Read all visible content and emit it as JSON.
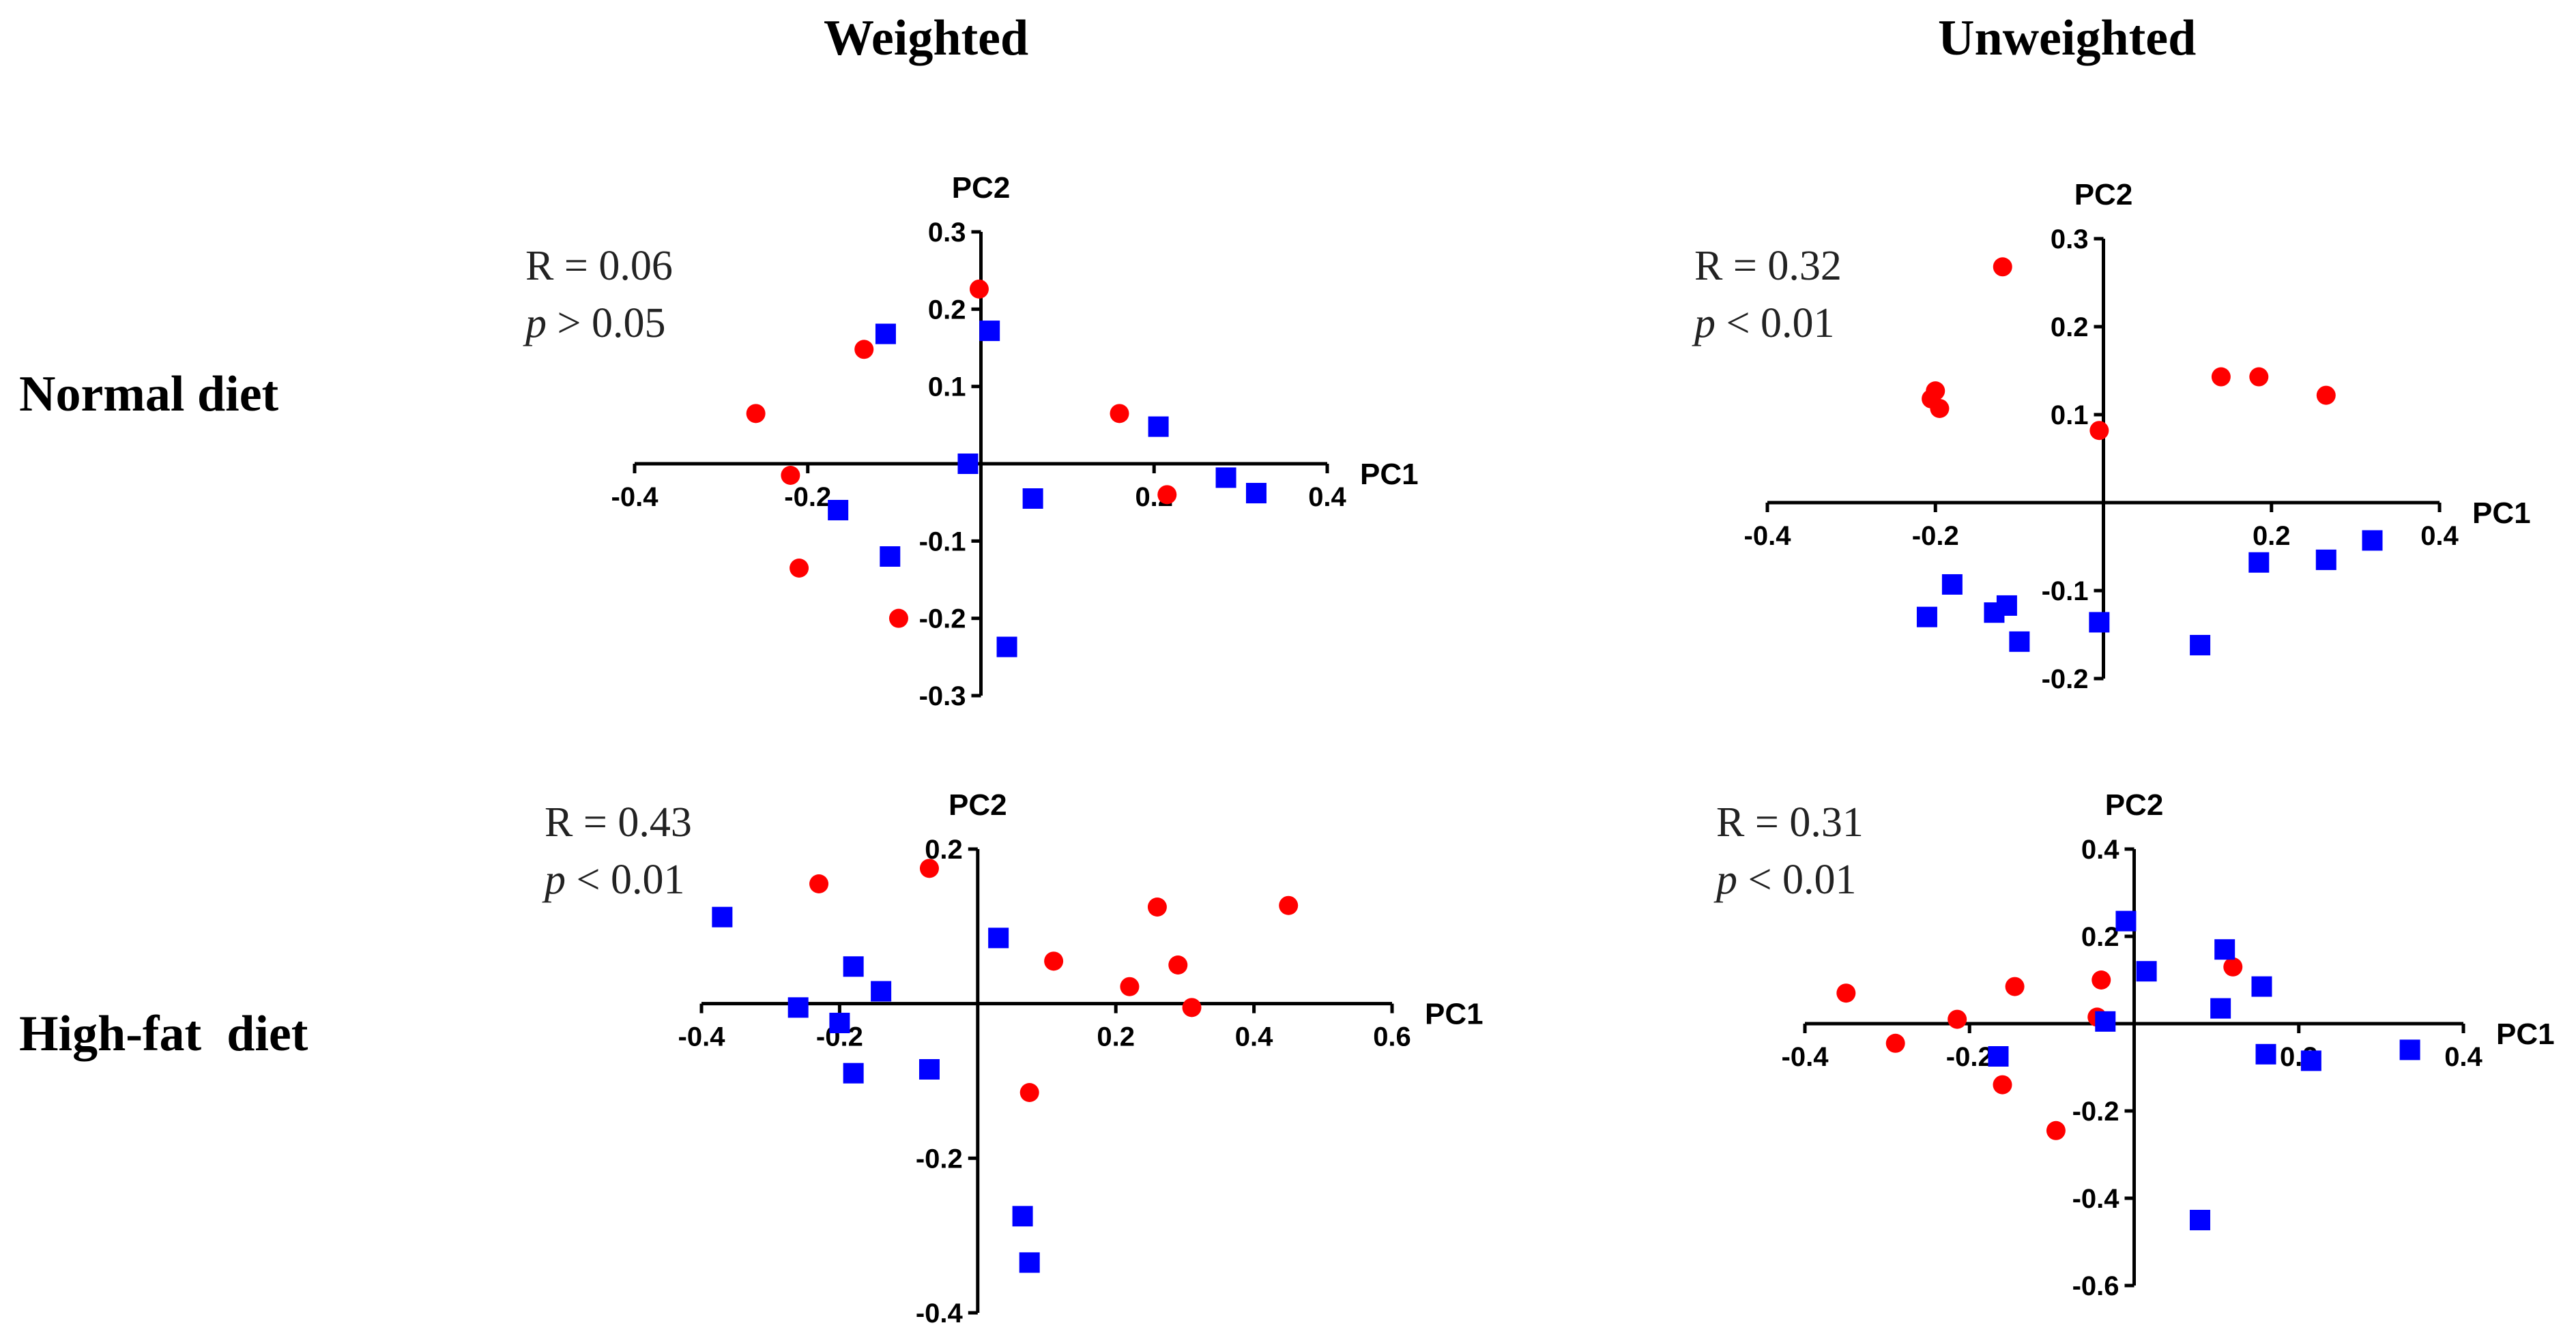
{
  "column_titles": [
    "Weighted",
    "Unweighted"
  ],
  "row_titles": [
    "Normal diet",
    "High-fat  diet"
  ],
  "colors": {
    "groupA": "#ff0000",
    "groupB": "#0000ff"
  },
  "chart_data": [
    {
      "id": "weighted-normal",
      "type": "scatter",
      "title": "Weighted",
      "row": "Normal diet",
      "xlabel": "PC1",
      "ylabel": "PC2",
      "xlim": [
        -0.4,
        0.4
      ],
      "ylim": [
        -0.3,
        0.3
      ],
      "xticks": [
        "-0.4",
        "-0.2",
        "0.2",
        "0.4"
      ],
      "yticks": [
        "0.3",
        "0.2",
        "0.1",
        "-0.1",
        "-0.2",
        "-0.3"
      ],
      "stats": {
        "r": "R = 0.06",
        "p_symbol": "p",
        "p_rest": " > 0.05"
      },
      "series": [
        {
          "name": "red",
          "marker": "circle",
          "color": "#ff0000",
          "points": [
            [
              -0.26,
              0.065
            ],
            [
              -0.22,
              -0.015
            ],
            [
              -0.21,
              -0.135
            ],
            [
              -0.135,
              0.148
            ],
            [
              -0.095,
              -0.2
            ],
            [
              -0.002,
              0.226
            ],
            [
              0.16,
              0.065
            ],
            [
              0.215,
              -0.04
            ]
          ]
        },
        {
          "name": "blue",
          "marker": "square",
          "color": "#0000ff",
          "points": [
            [
              -0.165,
              -0.06
            ],
            [
              -0.11,
              0.168
            ],
            [
              -0.105,
              -0.12
            ],
            [
              -0.015,
              0.0
            ],
            [
              0.01,
              0.172
            ],
            [
              0.03,
              -0.237
            ],
            [
              0.06,
              -0.045
            ],
            [
              0.205,
              0.048
            ],
            [
              0.283,
              -0.018
            ],
            [
              0.318,
              -0.038
            ]
          ]
        }
      ]
    },
    {
      "id": "unweighted-normal",
      "type": "scatter",
      "title": "Unweighted",
      "row": "Normal diet",
      "xlabel": "PC1",
      "ylabel": "PC2",
      "xlim": [
        -0.4,
        0.4
      ],
      "ylim": [
        -0.2,
        0.3
      ],
      "xticks": [
        "-0.4",
        "-0.2",
        "0.2",
        "0.4"
      ],
      "yticks": [
        "0.3",
        "0.2",
        "0.1",
        "-0.1",
        "-0.2"
      ],
      "stats": {
        "r": "R = 0.32",
        "p_symbol": "p",
        "p_rest": " < 0.01"
      },
      "series": [
        {
          "name": "red",
          "marker": "circle",
          "color": "#ff0000",
          "points": [
            [
              -0.205,
              0.118
            ],
            [
              -0.2,
              0.127
            ],
            [
              -0.195,
              0.107
            ],
            [
              -0.12,
              0.268
            ],
            [
              -0.005,
              0.082
            ],
            [
              0.14,
              0.143
            ],
            [
              0.185,
              0.143
            ],
            [
              0.265,
              0.122
            ]
          ]
        },
        {
          "name": "blue",
          "marker": "square",
          "color": "#0000ff",
          "points": [
            [
              -0.21,
              -0.13
            ],
            [
              -0.18,
              -0.093
            ],
            [
              -0.13,
              -0.125
            ],
            [
              -0.115,
              -0.117
            ],
            [
              -0.1,
              -0.158
            ],
            [
              -0.005,
              -0.136
            ],
            [
              0.115,
              -0.162
            ],
            [
              0.185,
              -0.068
            ],
            [
              0.265,
              -0.065
            ],
            [
              0.32,
              -0.043
            ]
          ]
        }
      ]
    },
    {
      "id": "weighted-highfat",
      "type": "scatter",
      "title": "Weighted",
      "row": "High-fat  diet",
      "xlabel": "PC1",
      "ylabel": "PC2",
      "xlim": [
        -0.4,
        0.6
      ],
      "ylim": [
        -0.4,
        0.2
      ],
      "xticks": [
        "-0.4",
        "-0.2",
        "0.2",
        "0.4",
        "0.6"
      ],
      "yticks": [
        "0.2",
        "-0.2",
        "-0.4"
      ],
      "stats": {
        "r": "R = 0.43",
        "p_symbol": "p",
        "p_rest": " < 0.01"
      },
      "series": [
        {
          "name": "red",
          "marker": "circle",
          "color": "#ff0000",
          "points": [
            [
              -0.23,
              0.155
            ],
            [
              -0.07,
              0.175
            ],
            [
              0.11,
              0.055
            ],
            [
              0.075,
              -0.115
            ],
            [
              0.22,
              0.022
            ],
            [
              0.26,
              0.125
            ],
            [
              0.29,
              0.05
            ],
            [
              0.31,
              -0.005
            ],
            [
              0.45,
              0.127
            ]
          ]
        },
        {
          "name": "blue",
          "marker": "square",
          "color": "#0000ff",
          "points": [
            [
              -0.37,
              0.112
            ],
            [
              -0.26,
              -0.005
            ],
            [
              -0.2,
              -0.025
            ],
            [
              -0.18,
              -0.09
            ],
            [
              -0.18,
              0.048
            ],
            [
              -0.14,
              0.016
            ],
            [
              -0.07,
              -0.085
            ],
            [
              0.03,
              0.085
            ],
            [
              0.065,
              -0.275
            ],
            [
              0.075,
              -0.335
            ]
          ]
        }
      ]
    },
    {
      "id": "unweighted-highfat",
      "type": "scatter",
      "title": "Unweighted",
      "row": "High-fat  diet",
      "xlabel": "PC1",
      "ylabel": "PC2",
      "xlim": [
        -0.4,
        0.4
      ],
      "ylim": [
        -0.6,
        0.4
      ],
      "xticks": [
        "-0.4",
        "-0.2",
        "0.2",
        "0.4"
      ],
      "yticks": [
        "0.4",
        "0.2",
        "-0.2",
        "-0.4",
        "-0.6"
      ],
      "stats": {
        "r": "R = 0.31",
        "p_symbol": "p",
        "p_rest": " < 0.01"
      },
      "series": [
        {
          "name": "red",
          "marker": "circle",
          "color": "#ff0000",
          "points": [
            [
              -0.35,
              0.07
            ],
            [
              -0.29,
              -0.045
            ],
            [
              -0.215,
              0.01
            ],
            [
              -0.16,
              -0.14
            ],
            [
              -0.145,
              0.085
            ],
            [
              -0.095,
              -0.245
            ],
            [
              -0.045,
              0.015
            ],
            [
              -0.04,
              0.1
            ],
            [
              0.12,
              0.13
            ]
          ]
        },
        {
          "name": "blue",
          "marker": "square",
          "color": "#0000ff",
          "points": [
            [
              -0.165,
              -0.075
            ],
            [
              -0.035,
              0.005
            ],
            [
              -0.01,
              0.235
            ],
            [
              0.015,
              0.12
            ],
            [
              0.08,
              -0.45
            ],
            [
              0.105,
              0.035
            ],
            [
              0.11,
              0.17
            ],
            [
              0.155,
              0.085
            ],
            [
              0.16,
              -0.07
            ],
            [
              0.215,
              -0.085
            ],
            [
              0.335,
              -0.06
            ]
          ]
        }
      ]
    }
  ]
}
